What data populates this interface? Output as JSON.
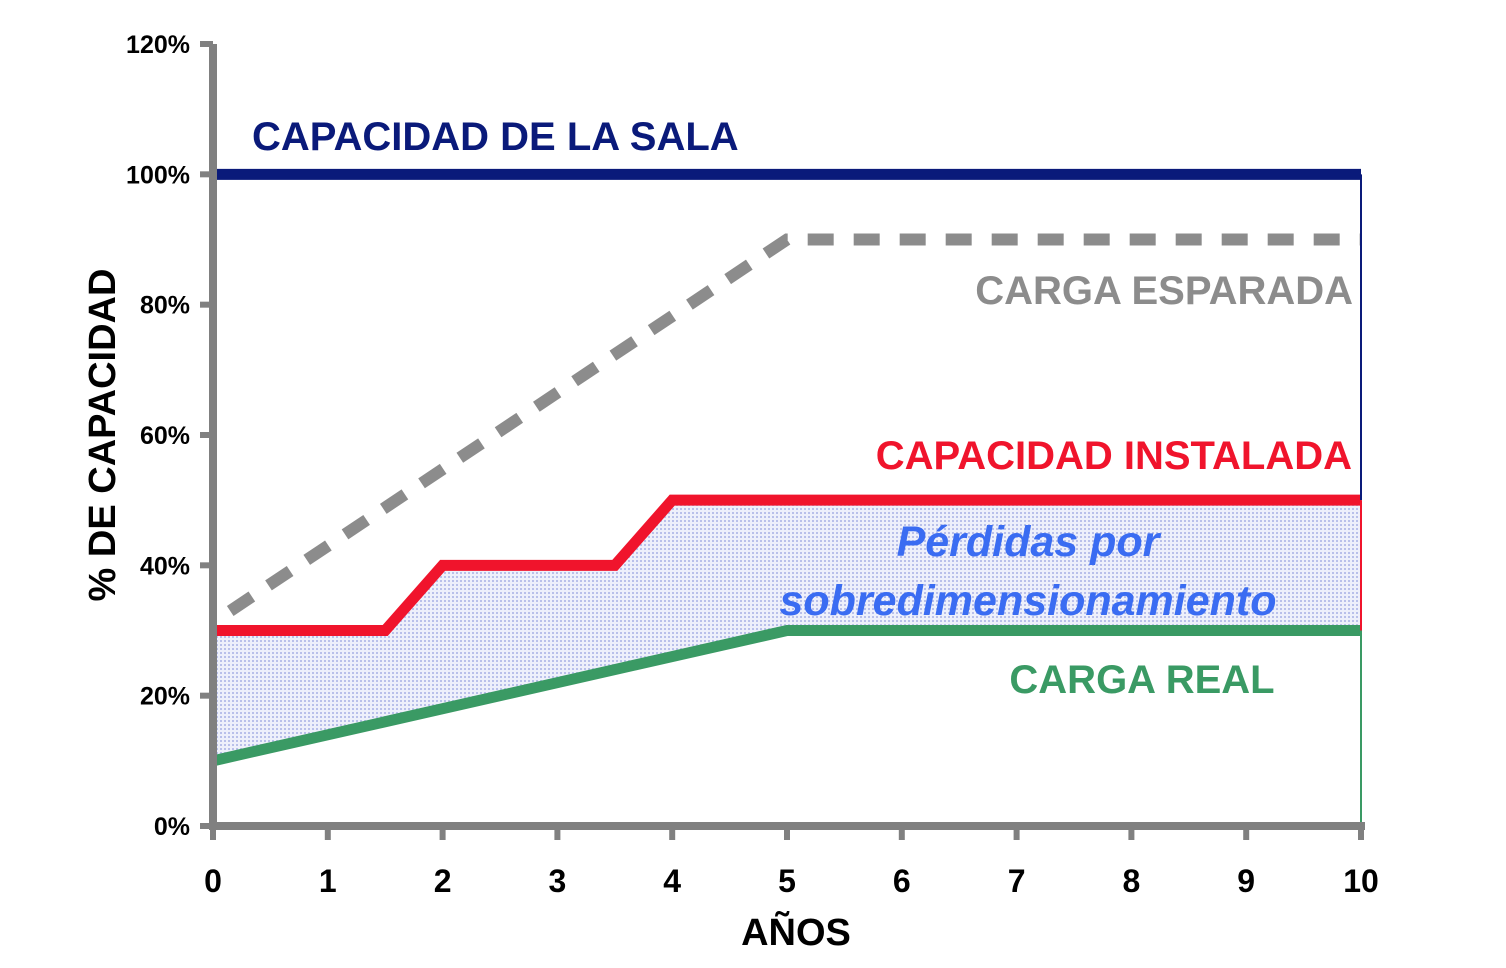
{
  "chart_data": {
    "type": "line",
    "title": "",
    "xlabel": "AÑOS",
    "ylabel": "% DE CAPACIDAD",
    "xlim": [
      0,
      10
    ],
    "ylim": [
      0,
      120
    ],
    "xticks": [
      0,
      1,
      2,
      3,
      4,
      5,
      6,
      7,
      8,
      9,
      10
    ],
    "xtick_labels": [
      "0",
      "1",
      "2",
      "3",
      "4",
      "5",
      "6",
      "7",
      "8",
      "9",
      "10"
    ],
    "yticks": [
      0,
      20,
      40,
      60,
      80,
      100,
      120
    ],
    "ytick_labels": [
      "0%",
      "20%",
      "40%",
      "60%",
      "80%",
      "100%",
      "120%"
    ],
    "series": [
      {
        "key": "sala",
        "name": "CAPACIDAD DE LA SALA",
        "color": "#0a1a7a",
        "style": "solid",
        "x": [
          0,
          10
        ],
        "y": [
          100,
          100
        ]
      },
      {
        "key": "esperada",
        "name": "CARGA ESPARADA",
        "color": "#8c8c8c",
        "style": "dashed",
        "x": [
          0.15,
          5,
          10
        ],
        "y": [
          33,
          90,
          90
        ]
      },
      {
        "key": "instalada",
        "name": "CAPACIDAD INSTALADA",
        "color": "#f0142c",
        "style": "solid",
        "x": [
          0,
          1.5,
          2,
          3.5,
          4,
          10
        ],
        "y": [
          30,
          30,
          40,
          40,
          50,
          50
        ]
      },
      {
        "key": "real",
        "name": "CARGA REAL",
        "color": "#3a9a64",
        "style": "solid",
        "x": [
          0,
          5,
          10
        ],
        "y": [
          10,
          30,
          30
        ]
      }
    ],
    "fill_between": {
      "upper": "instalada",
      "lower": "real",
      "color": "#d6daf4",
      "label_line1": "Pérdidas por",
      "label_line2": "sobredimensionamiento",
      "label_color": "#3a6cf2"
    }
  }
}
